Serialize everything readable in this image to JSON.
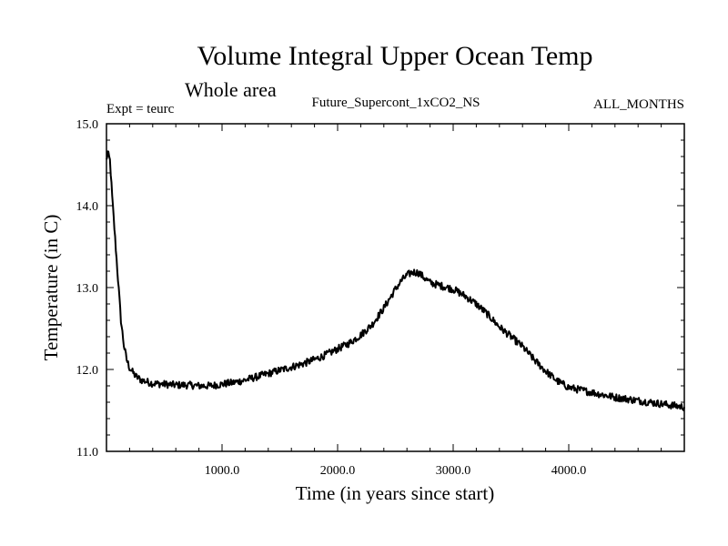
{
  "chart_data": {
    "type": "line",
    "title": "Volume Integral Upper Ocean Temp",
    "subtitle": "Whole area",
    "annotations": {
      "experiment": "Expt = teurc",
      "run_name": "Future_Supercont_1xCO2_NS",
      "months": "ALL_MONTHS"
    },
    "xlabel": "Time (in years since start)",
    "ylabel": "Temperature (in C)",
    "xlim": [
      0,
      5000
    ],
    "ylim": [
      11.0,
      15.0
    ],
    "x_ticks": [
      1000,
      2000,
      3000,
      4000
    ],
    "x_tick_labels": [
      "1000.0",
      "2000.0",
      "3000.0",
      "4000.0"
    ],
    "y_ticks": [
      11.0,
      12.0,
      13.0,
      14.0,
      15.0
    ],
    "y_tick_labels": [
      "11.0",
      "12.0",
      "13.0",
      "14.0",
      "15.0"
    ],
    "grid": false,
    "legend": "none",
    "line_color": "#000000",
    "series": [
      {
        "x": [
          0,
          10,
          30,
          50,
          75,
          100,
          125,
          150,
          175,
          200,
          250,
          300,
          350,
          400,
          500,
          600,
          700,
          800,
          900,
          1000,
          1100,
          1200,
          1300,
          1400,
          1500,
          1600,
          1700,
          1800,
          1900,
          2000,
          2100,
          2200,
          2300,
          2400,
          2500,
          2550,
          2600,
          2650,
          2700,
          2750,
          2800,
          2900,
          3000,
          3100,
          3200,
          3300,
          3400,
          3500,
          3600,
          3700,
          3800,
          3900,
          4000,
          4200,
          4400,
          4600,
          4800,
          5000
        ],
        "y": [
          14.55,
          14.65,
          14.55,
          14.1,
          13.6,
          13.1,
          12.6,
          12.3,
          12.12,
          12.02,
          11.92,
          11.87,
          11.85,
          11.83,
          11.82,
          11.81,
          11.81,
          11.8,
          11.8,
          11.82,
          11.84,
          11.87,
          11.91,
          11.95,
          11.99,
          12.03,
          12.07,
          12.12,
          12.18,
          12.25,
          12.32,
          12.42,
          12.55,
          12.75,
          12.98,
          13.08,
          13.15,
          13.19,
          13.18,
          13.12,
          13.06,
          13.02,
          12.98,
          12.9,
          12.8,
          12.67,
          12.52,
          12.4,
          12.28,
          12.12,
          11.98,
          11.86,
          11.78,
          11.72,
          11.66,
          11.62,
          11.58,
          11.54
        ]
      }
    ]
  }
}
